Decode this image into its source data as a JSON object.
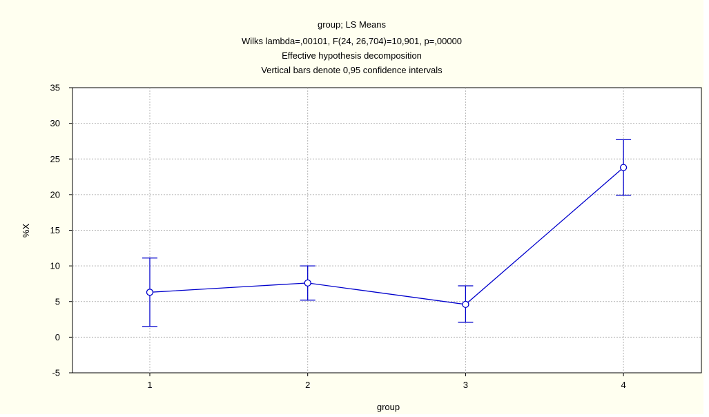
{
  "chart_data": {
    "type": "line",
    "title_lines": [
      "group; LS Means",
      "Wilks lambda=,00101, F(24, 26,704)=10,901, p=,00000",
      "Effective hypothesis decomposition",
      "Vertical bars denote 0,95 confidence intervals"
    ],
    "xlabel": "group",
    "ylabel": "%X",
    "categories": [
      "1",
      "2",
      "3",
      "4"
    ],
    "ylim": [
      -5,
      35
    ],
    "yticks": [
      "-5",
      "0",
      "5",
      "10",
      "15",
      "20",
      "25",
      "30",
      "35"
    ],
    "grid": true,
    "series": [
      {
        "values": [
          6.3,
          7.6,
          4.6,
          23.8
        ],
        "lower": [
          1.5,
          5.2,
          2.1,
          19.9
        ],
        "upper": [
          11.1,
          10.0,
          7.2,
          27.7
        ]
      }
    ],
    "colors": {
      "series": "#0000cc",
      "grid": "#b4b4b4",
      "background": "#fffff0",
      "plot_background": "#ffffff"
    }
  }
}
